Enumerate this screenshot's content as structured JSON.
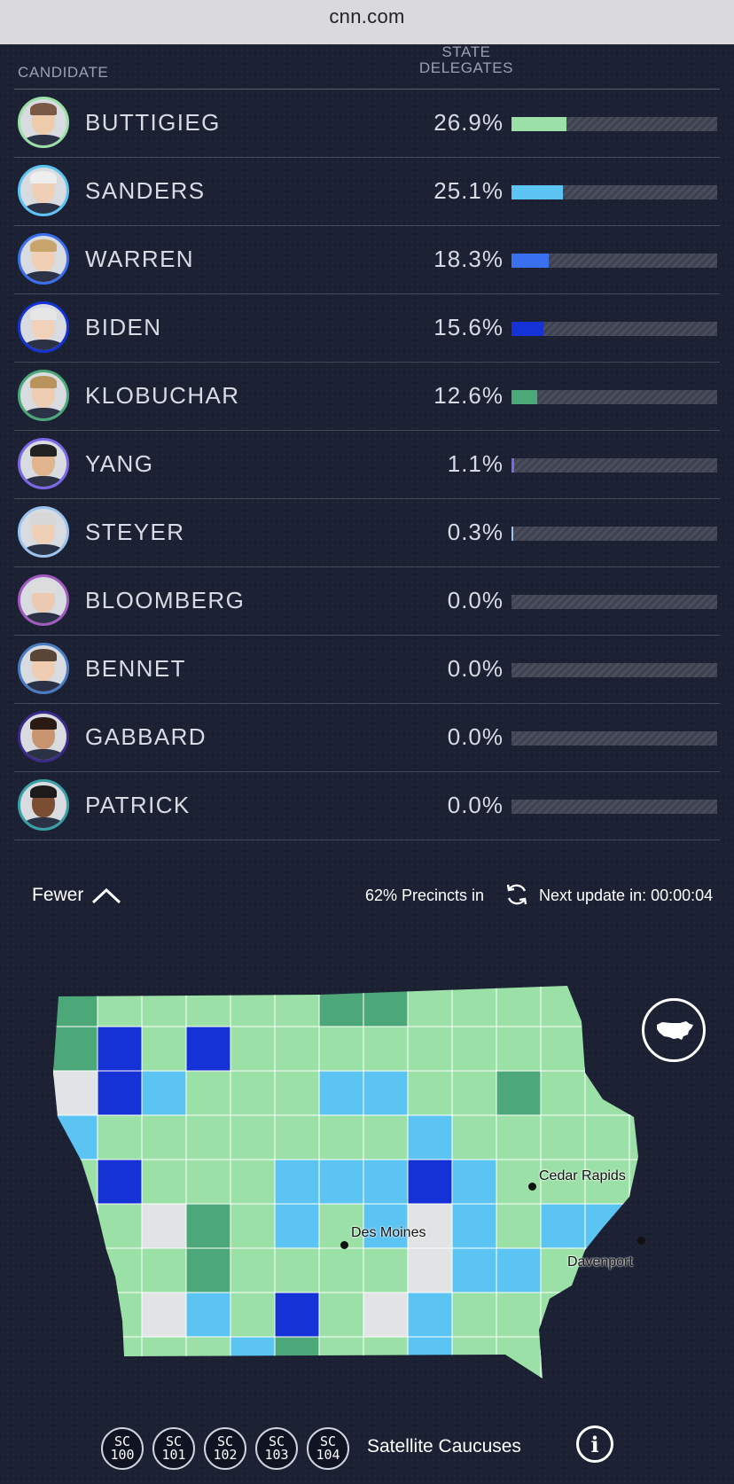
{
  "browser": {
    "url": "cnn.com"
  },
  "table": {
    "header_candidate": "CANDIDATE",
    "header_delegates_line1": "STATE",
    "header_delegates_line2": "DELEGATES",
    "rows": [
      {
        "name": "BUTTIGIEG",
        "pct": "26.9%",
        "value": 26.9,
        "color": "#9be0a6"
      },
      {
        "name": "SANDERS",
        "pct": "25.1%",
        "value": 25.1,
        "color": "#5bc4f2"
      },
      {
        "name": "WARREN",
        "pct": "18.3%",
        "value": 18.3,
        "color": "#3a6ff0"
      },
      {
        "name": "BIDEN",
        "pct": "15.6%",
        "value": 15.6,
        "color": "#1432d6"
      },
      {
        "name": "KLOBUCHAR",
        "pct": "12.6%",
        "value": 12.6,
        "color": "#4ca879"
      },
      {
        "name": "YANG",
        "pct": "1.1%",
        "value": 1.1,
        "color": "#7a68e8"
      },
      {
        "name": "STEYER",
        "pct": "0.3%",
        "value": 0.3,
        "color": "#9cc3ee"
      },
      {
        "name": "BLOOMBERG",
        "pct": "0.0%",
        "value": 0.0,
        "color": "#a25ac0"
      },
      {
        "name": "BENNET",
        "pct": "0.0%",
        "value": 0.0,
        "color": "#4a7cc4"
      },
      {
        "name": "GABBARD",
        "pct": "0.0%",
        "value": 0.0,
        "color": "#3a2a8a"
      },
      {
        "name": "PATRICK",
        "pct": "0.0%",
        "value": 0.0,
        "color": "#3aa0a8"
      }
    ]
  },
  "footer": {
    "fewer_label": "Fewer",
    "precincts": "62% Precincts in",
    "next_update": "Next update in: 00:00:04"
  },
  "map": {
    "cities": [
      "Cedar Rapids",
      "Des Moines",
      "Davenport"
    ],
    "colors": {
      "light_green": "#9be0a6",
      "dark_green": "#4ca879",
      "light_blue": "#5bc4f2",
      "dark_blue": "#1432d6",
      "grey": "#e2e3e4"
    }
  },
  "satellite": {
    "buttons": [
      {
        "line1": "SC",
        "line2": "100"
      },
      {
        "line1": "SC",
        "line2": "101"
      },
      {
        "line1": "SC",
        "line2": "102"
      },
      {
        "line1": "SC",
        "line2": "103"
      },
      {
        "line1": "SC",
        "line2": "104"
      }
    ],
    "label": "Satellite Caucuses"
  }
}
